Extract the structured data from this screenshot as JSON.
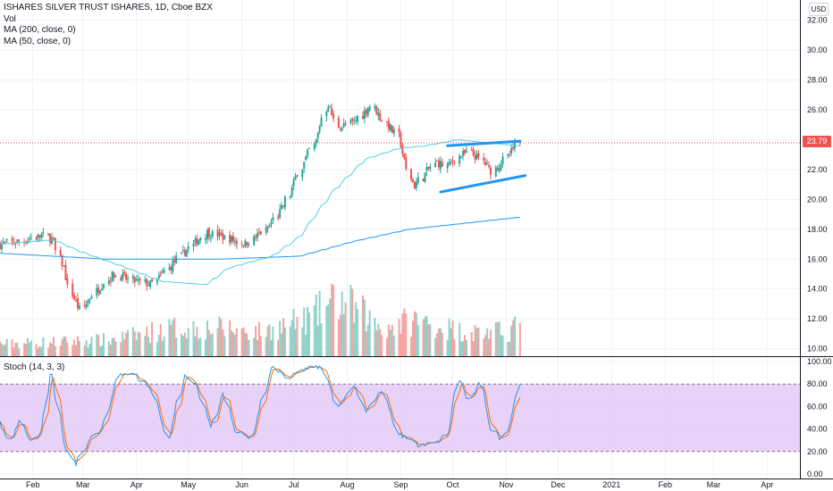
{
  "legend": {
    "title": "ISHARES SILVER TRUST ISHARES, 1D, Cboe BZX",
    "vol": "Vol",
    "ma200": "MA (200, close, 0)",
    "ma50": "MA (50, close, 0)"
  },
  "stoch_legend": "Stoch (14, 3, 3)",
  "currency": "USD",
  "last_price": "23.79",
  "colors": {
    "up": "#26a69a",
    "down": "#ef5350",
    "up_vol": "#8fd1c8",
    "down_vol": "#f4a3a1",
    "ma50": "#4dd0e1",
    "ma200": "#2196f3",
    "trendline": "#2196f3",
    "stoch_k": "#2196f3",
    "stoch_d": "#ff6d00",
    "stoch_band": "#e1c3f5"
  },
  "chart_data": [
    {
      "type": "candlestick",
      "title": "ISHARES SILVER TRUST ISHARES, 1D, Cboe BZX",
      "x_ticks": [
        "Feb",
        "Mar",
        "Apr",
        "May",
        "Jun",
        "Jul",
        "Aug",
        "Sep",
        "Oct",
        "Nov",
        "Dec",
        "2021",
        "Feb",
        "Mar",
        "Apr"
      ],
      "y_ticks": [
        "10.00",
        "12.00",
        "14.00",
        "16.00",
        "18.00",
        "20.00",
        "22.00",
        "24.00",
        "26.00",
        "28.00",
        "30.00",
        "32.00"
      ],
      "ylim": [
        9.5,
        33
      ],
      "last_price": 23.79,
      "price_anchors": [
        [
          0,
          17.0
        ],
        [
          8,
          17.2
        ],
        [
          16,
          17.6
        ],
        [
          20,
          17.3
        ],
        [
          22,
          16.0
        ],
        [
          24,
          15.4
        ],
        [
          26,
          13.8
        ],
        [
          30,
          12.6
        ],
        [
          36,
          14.0
        ],
        [
          42,
          15.0
        ],
        [
          48,
          14.6
        ],
        [
          56,
          14.3
        ],
        [
          62,
          15.4
        ],
        [
          68,
          16.5
        ],
        [
          76,
          17.8
        ],
        [
          82,
          17.5
        ],
        [
          90,
          17.0
        ],
        [
          98,
          18.0
        ],
        [
          104,
          19.5
        ],
        [
          110,
          22.0
        ],
        [
          116,
          24.0
        ],
        [
          120,
          26.5
        ],
        [
          124,
          24.8
        ],
        [
          130,
          25.2
        ],
        [
          136,
          26.3
        ],
        [
          142,
          25.0
        ],
        [
          146,
          24.2
        ],
        [
          150,
          21.5
        ],
        [
          152,
          20.9
        ],
        [
          156,
          21.8
        ],
        [
          160,
          22.5
        ],
        [
          164,
          22.2
        ],
        [
          168,
          22.9
        ],
        [
          172,
          23.1
        ],
        [
          176,
          22.7
        ],
        [
          180,
          21.9
        ],
        [
          184,
          22.5
        ],
        [
          188,
          23.3
        ],
        [
          190,
          23.79
        ]
      ],
      "ma50_anchors": [
        [
          0,
          17.0
        ],
        [
          20,
          17.3
        ],
        [
          30,
          16.5
        ],
        [
          44,
          15.6
        ],
        [
          60,
          14.5
        ],
        [
          76,
          14.3
        ],
        [
          84,
          15.4
        ],
        [
          100,
          16.2
        ],
        [
          110,
          17.5
        ],
        [
          122,
          20.5
        ],
        [
          134,
          22.7
        ],
        [
          146,
          23.4
        ],
        [
          156,
          23.6
        ],
        [
          168,
          24.0
        ],
        [
          178,
          23.8
        ],
        [
          190,
          23.6
        ]
      ],
      "ma200_anchors": [
        [
          0,
          16.4
        ],
        [
          40,
          16.0
        ],
        [
          80,
          16.0
        ],
        [
          110,
          16.2
        ],
        [
          130,
          17.2
        ],
        [
          150,
          18.0
        ],
        [
          170,
          18.4
        ],
        [
          190,
          18.8
        ]
      ],
      "trendlines": [
        {
          "from": [
            "2020-09-28",
            23.6
          ],
          "to": [
            "2020-11-09",
            23.9
          ]
        },
        {
          "from": [
            "2020-09-24",
            20.5
          ],
          "to": [
            "2020-11-12",
            21.6
          ]
        }
      ]
    },
    {
      "type": "bar",
      "name": "Vol",
      "volume_anchors": [
        [
          0,
          0.15
        ],
        [
          40,
          0.2
        ],
        [
          64,
          0.35
        ],
        [
          80,
          0.35
        ],
        [
          96,
          0.3
        ],
        [
          112,
          0.45
        ],
        [
          124,
          0.7
        ],
        [
          132,
          0.55
        ],
        [
          140,
          0.35
        ],
        [
          152,
          0.45
        ],
        [
          170,
          0.3
        ],
        [
          186,
          0.3
        ],
        [
          190,
          0.45
        ]
      ]
    },
    {
      "type": "line",
      "name": "Stoch (14, 3, 3)",
      "y_ticks": [
        "0.00",
        "20.00",
        "40.00",
        "60.00",
        "80.00",
        "100.00"
      ],
      "ylim": [
        -4,
        104
      ],
      "band": [
        20,
        80
      ],
      "k_anchors": [
        [
          0,
          45
        ],
        [
          4,
          30
        ],
        [
          8,
          48
        ],
        [
          12,
          28
        ],
        [
          16,
          40
        ],
        [
          19,
          95
        ],
        [
          24,
          25
        ],
        [
          28,
          8
        ],
        [
          33,
          30
        ],
        [
          38,
          40
        ],
        [
          44,
          90
        ],
        [
          50,
          88
        ],
        [
          56,
          75
        ],
        [
          62,
          30
        ],
        [
          68,
          88
        ],
        [
          72,
          80
        ],
        [
          78,
          40
        ],
        [
          82,
          75
        ],
        [
          86,
          40
        ],
        [
          92,
          30
        ],
        [
          100,
          95
        ],
        [
          106,
          85
        ],
        [
          112,
          94
        ],
        [
          118,
          95
        ],
        [
          124,
          60
        ],
        [
          130,
          80
        ],
        [
          134,
          55
        ],
        [
          140,
          75
        ],
        [
          146,
          35
        ],
        [
          150,
          32
        ],
        [
          154,
          25
        ],
        [
          160,
          28
        ],
        [
          164,
          35
        ],
        [
          168,
          85
        ],
        [
          172,
          65
        ],
        [
          176,
          80
        ],
        [
          180,
          40
        ],
        [
          184,
          30
        ],
        [
          188,
          55
        ],
        [
          190,
          80
        ]
      ]
    }
  ]
}
